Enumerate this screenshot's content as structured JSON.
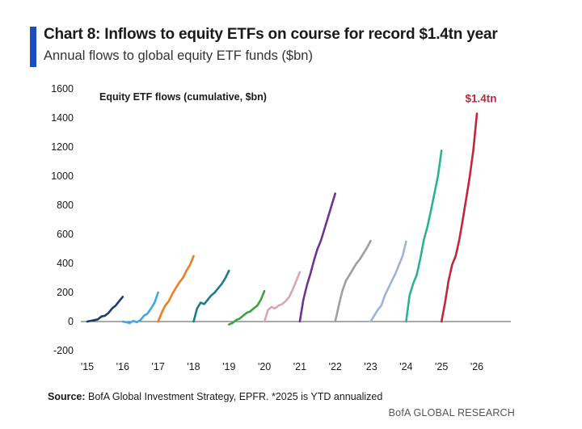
{
  "header": {
    "title": "Chart 8: Inflows to equity ETFs on course for record $1.4tn year",
    "subtitle": "Annual flows to global equity ETF funds ($bn)"
  },
  "footer": {
    "source_label": "Source:",
    "source_text": " BofA Global Investment Strategy, EPFR. *2025 is YTD annualized",
    "brand": "BofA GLOBAL RESEARCH"
  },
  "chart_data": {
    "type": "line",
    "title": "Chart 8: Inflows to equity ETFs on course for record $1.4tn year",
    "subtitle": "Annual flows to global equity ETF funds ($bn)",
    "inner_label": "Equity ETF flows (cumulative, $bn)",
    "annotation": {
      "text": "$1.4tn",
      "x": 2026.0,
      "y": 1430
    },
    "x_ticks": [
      "'15",
      "'16",
      "'17",
      "'18",
      "'19",
      "'20",
      "'21",
      "'22",
      "'23",
      "'24",
      "'25",
      "'26"
    ],
    "ylim": [
      -200,
      1600
    ],
    "xlim": [
      2015,
      2026
    ],
    "y_ticks": [
      -200,
      0,
      200,
      400,
      600,
      800,
      1000,
      1200,
      1400,
      1600
    ],
    "grid": false,
    "series": [
      {
        "color": "#1f3a6e",
        "x": [
          2015.0,
          2015.1,
          2015.2,
          2015.3,
          2015.4,
          2015.5,
          2015.6,
          2015.7,
          2015.8,
          2015.9,
          2016.0
        ],
        "y": [
          0,
          5,
          10,
          15,
          35,
          40,
          60,
          90,
          110,
          140,
          170
        ]
      },
      {
        "color": "#3fa9dd",
        "x": [
          2016.0,
          2016.1,
          2016.2,
          2016.3,
          2016.4,
          2016.5,
          2016.6,
          2016.7,
          2016.8,
          2016.9,
          2017.0
        ],
        "y": [
          0,
          -5,
          -10,
          5,
          -5,
          10,
          40,
          55,
          90,
          130,
          200
        ]
      },
      {
        "color": "#ef7d22",
        "x": [
          2017.0,
          2017.1,
          2017.2,
          2017.3,
          2017.4,
          2017.5,
          2017.6,
          2017.7,
          2017.8,
          2017.9,
          2018.0
        ],
        "y": [
          0,
          60,
          110,
          140,
          190,
          230,
          270,
          300,
          350,
          390,
          450
        ]
      },
      {
        "color": "#1e7b8a",
        "x": [
          2018.0,
          2018.1,
          2018.2,
          2018.3,
          2018.4,
          2018.5,
          2018.6,
          2018.7,
          2018.8,
          2018.9,
          2019.0
        ],
        "y": [
          0,
          90,
          130,
          120,
          150,
          180,
          200,
          230,
          260,
          300,
          350
        ]
      },
      {
        "color": "#3ba33a",
        "x": [
          2019.0,
          2019.1,
          2019.2,
          2019.3,
          2019.4,
          2019.5,
          2019.6,
          2019.7,
          2019.8,
          2019.9,
          2020.0
        ],
        "y": [
          -20,
          -10,
          10,
          20,
          40,
          60,
          70,
          90,
          110,
          150,
          210
        ]
      },
      {
        "color": "#d9a3b9",
        "x": [
          2020.0,
          2020.1,
          2020.2,
          2020.3,
          2020.4,
          2020.5,
          2020.6,
          2020.7,
          2020.8,
          2020.9,
          2021.0
        ],
        "y": [
          0,
          80,
          100,
          90,
          110,
          120,
          140,
          170,
          220,
          280,
          340
        ]
      },
      {
        "color": "#6b3590",
        "x": [
          2021.0,
          2021.1,
          2021.2,
          2021.3,
          2021.4,
          2021.5,
          2021.6,
          2021.7,
          2021.8,
          2021.9,
          2022.0
        ],
        "y": [
          0,
          150,
          250,
          330,
          420,
          500,
          560,
          640,
          720,
          800,
          880
        ]
      },
      {
        "color": "#9e9e9e",
        "x": [
          2022.0,
          2022.1,
          2022.2,
          2022.3,
          2022.4,
          2022.5,
          2022.6,
          2022.7,
          2022.8,
          2022.9,
          2023.0
        ],
        "y": [
          0,
          110,
          210,
          280,
          320,
          360,
          400,
          430,
          470,
          510,
          555
        ]
      },
      {
        "color": "#9fb3d6",
        "x": [
          2023.0,
          2023.1,
          2023.2,
          2023.3,
          2023.4,
          2023.5,
          2023.6,
          2023.7,
          2023.8,
          2023.9,
          2024.0
        ],
        "y": [
          0,
          40,
          80,
          110,
          180,
          230,
          280,
          330,
          390,
          450,
          550
        ]
      },
      {
        "color": "#2bb38f",
        "x": [
          2024.0,
          2024.1,
          2024.2,
          2024.3,
          2024.4,
          2024.5,
          2024.6,
          2024.7,
          2024.8,
          2024.9,
          2025.0
        ],
        "y": [
          0,
          180,
          260,
          320,
          430,
          560,
          650,
          760,
          880,
          1000,
          1175
        ]
      },
      {
        "color": "#c0263c",
        "x": [
          2025.0,
          2025.1,
          2025.2,
          2025.3,
          2025.4,
          2025.5,
          2025.6,
          2025.7,
          2025.8,
          2025.9,
          2026.0
        ],
        "y": [
          0,
          130,
          280,
          390,
          450,
          560,
          700,
          850,
          1000,
          1180,
          1430
        ]
      }
    ]
  }
}
